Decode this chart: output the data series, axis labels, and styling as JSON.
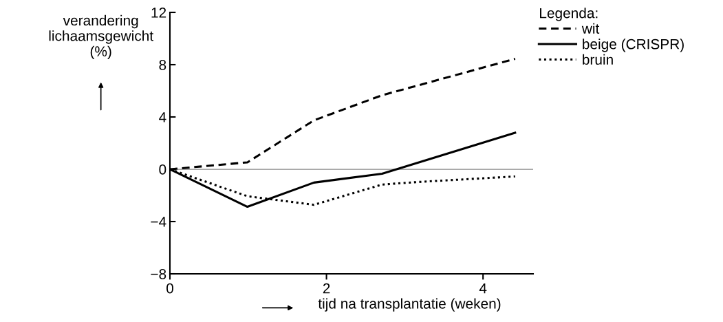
{
  "chart_data": {
    "type": "line",
    "ylabel": "verandering\nlichaamsgewicht\n(%)",
    "xlabel": "tijd na transplantatie (weken)",
    "legend_title": "Legenda:",
    "legend": "top right",
    "xlim": [
      0,
      4.64
    ],
    "ylim": [
      -8,
      12
    ],
    "xticks": [
      0,
      2,
      4
    ],
    "yticks": [
      {
        "value": -8,
        "label": "−8"
      },
      {
        "value": -4,
        "label": "−4"
      },
      0,
      4,
      8,
      12
    ],
    "grid": false,
    "ref_lines": [
      {
        "axis": "y",
        "value": 0,
        "color": "#888888",
        "line_style": "solid"
      }
    ],
    "series": [
      {
        "name": "wit",
        "color": "#000000",
        "line_style": "dashed",
        "x": [
          0,
          0.99,
          1.84,
          2.71,
          4.41
        ],
        "values": [
          0,
          0.53,
          3.74,
          5.66,
          8.45
        ]
      },
      {
        "name": "beige (CRISPR)",
        "color": "#000000",
        "line_style": "solid",
        "x": [
          0,
          0.99,
          1.84,
          2.71,
          4.41
        ],
        "values": [
          0,
          -2.87,
          -1.02,
          -0.34,
          2.79
        ]
      },
      {
        "name": "bruin",
        "color": "#000000",
        "line_style": "dotted",
        "x": [
          0,
          0.99,
          1.84,
          2.71,
          3.15,
          4.41
        ],
        "values": [
          0,
          -2.06,
          -2.72,
          -1.17,
          -0.98,
          -0.55
        ]
      }
    ]
  }
}
